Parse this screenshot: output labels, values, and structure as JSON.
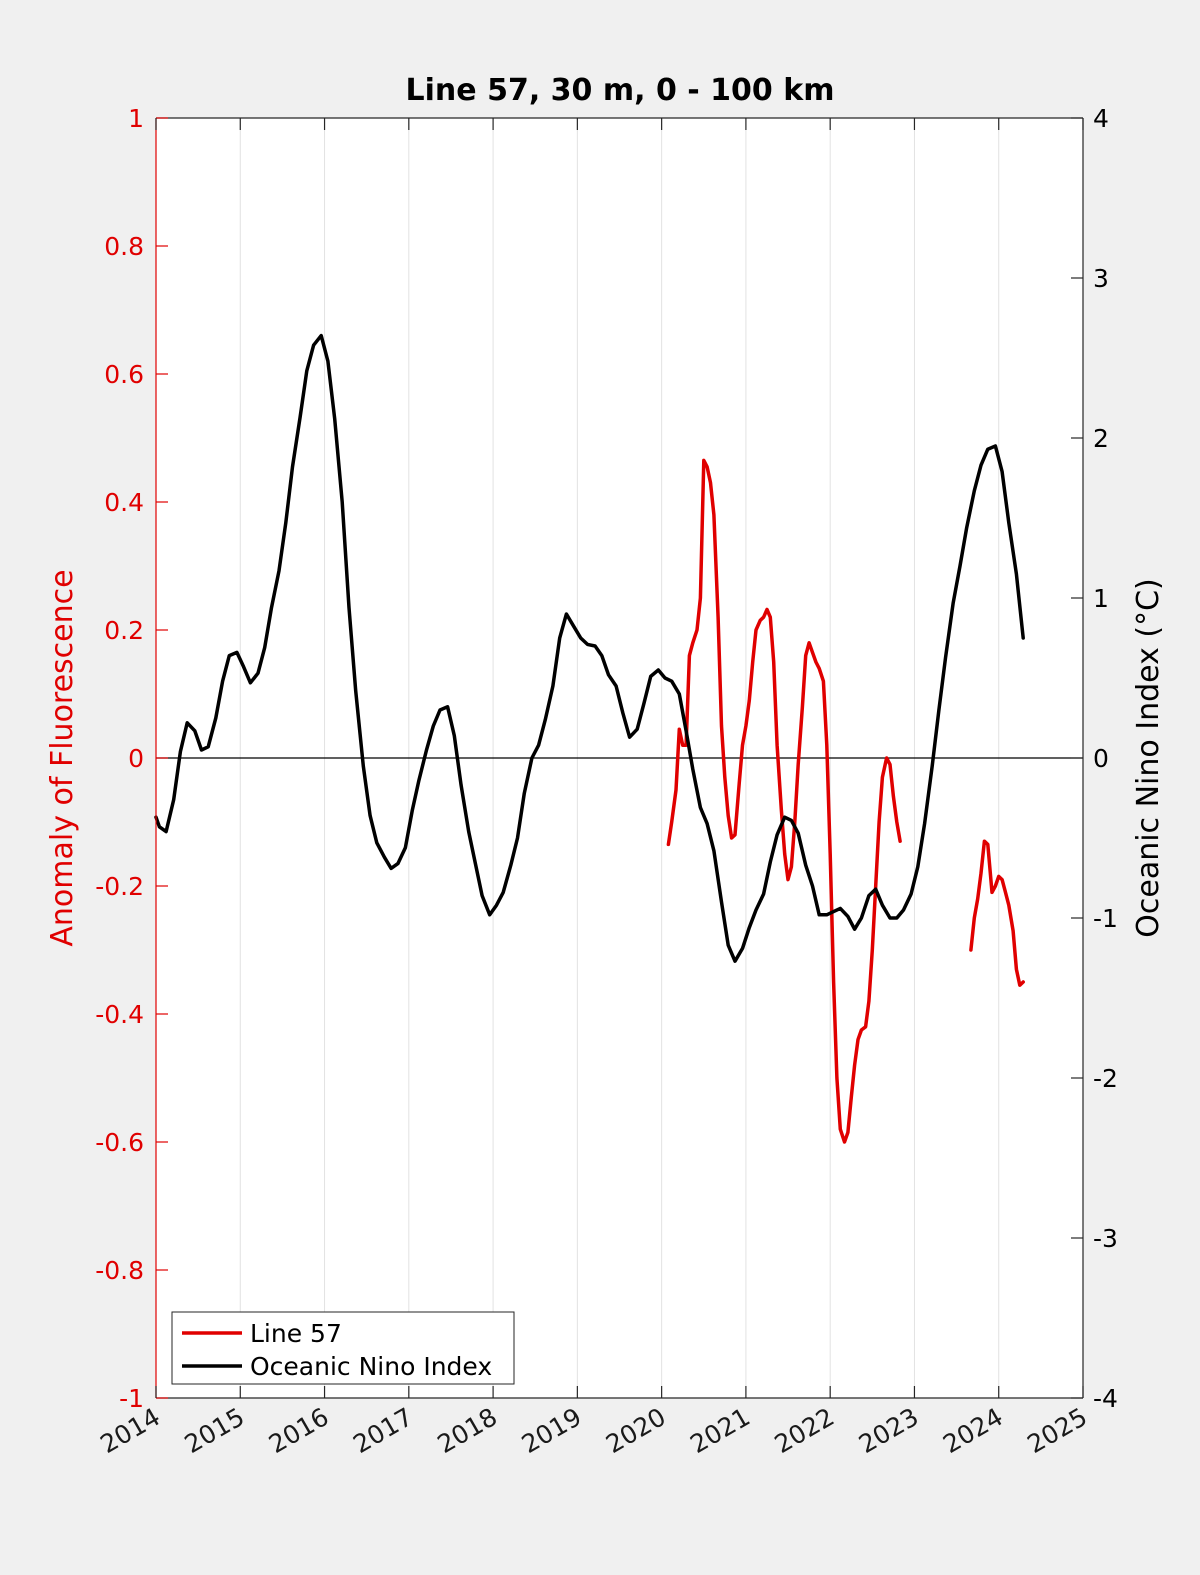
{
  "chart_data": {
    "type": "line",
    "title": "Line 57, 30 m, 0 - 100 km",
    "xlabel": "",
    "ylabel_left": "Anomaly of Fluorescence",
    "ylabel_right": "Oceanic Nino Index (°C)",
    "xlim": [
      2014,
      2025
    ],
    "ylim_left": [
      -1,
      1
    ],
    "ylim_right": [
      -4,
      4
    ],
    "x_ticks": [
      "2014",
      "2015",
      "2016",
      "2017",
      "2018",
      "2019",
      "2020",
      "2021",
      "2022",
      "2023",
      "2024",
      "2025"
    ],
    "y_ticks_left": [
      "-1",
      "-0.8",
      "-0.6",
      "-0.4",
      "-0.2",
      "0",
      "0.2",
      "0.4",
      "0.6",
      "0.8",
      "1"
    ],
    "y_ticks_right": [
      "-4",
      "-3",
      "-2",
      "-1",
      "0",
      "1",
      "2",
      "3",
      "4"
    ],
    "vertical_grid": true,
    "legend_position": "bottom-left",
    "colors": {
      "line57": "#e00000",
      "oni": "#000000",
      "left_axis": "#e00000"
    },
    "series": [
      {
        "name": "Line 57",
        "axis": "left",
        "segments": [
          [
            [
              2020.08,
              -0.135
            ],
            [
              2020.12,
              -0.1
            ],
            [
              2020.17,
              -0.05
            ],
            [
              2020.21,
              0.045
            ],
            [
              2020.25,
              0.02
            ],
            [
              2020.29,
              0.02
            ],
            [
              2020.33,
              0.16
            ],
            [
              2020.37,
              0.18
            ],
            [
              2020.42,
              0.2
            ],
            [
              2020.46,
              0.25
            ],
            [
              2020.5,
              0.465
            ],
            [
              2020.54,
              0.455
            ],
            [
              2020.58,
              0.43
            ],
            [
              2020.62,
              0.38
            ],
            [
              2020.67,
              0.22
            ],
            [
              2020.71,
              0.05
            ],
            [
              2020.75,
              -0.03
            ],
            [
              2020.79,
              -0.09
            ],
            [
              2020.83,
              -0.125
            ],
            [
              2020.87,
              -0.12
            ],
            [
              2020.92,
              -0.04
            ],
            [
              2020.96,
              0.02
            ],
            [
              2021.0,
              0.05
            ],
            [
              2021.04,
              0.09
            ],
            [
              2021.08,
              0.15
            ],
            [
              2021.12,
              0.2
            ],
            [
              2021.17,
              0.215
            ],
            [
              2021.21,
              0.22
            ],
            [
              2021.25,
              0.232
            ],
            [
              2021.29,
              0.22
            ],
            [
              2021.33,
              0.15
            ],
            [
              2021.37,
              0.02
            ],
            [
              2021.42,
              -0.08
            ],
            [
              2021.46,
              -0.15
            ],
            [
              2021.5,
              -0.19
            ],
            [
              2021.54,
              -0.17
            ],
            [
              2021.58,
              -0.1
            ],
            [
              2021.62,
              -0.01
            ],
            [
              2021.67,
              0.08
            ],
            [
              2021.71,
              0.16
            ],
            [
              2021.75,
              0.18
            ],
            [
              2021.79,
              0.165
            ],
            [
              2021.83,
              0.15
            ],
            [
              2021.87,
              0.14
            ],
            [
              2021.92,
              0.12
            ],
            [
              2021.96,
              0.02
            ],
            [
              2022.0,
              -0.15
            ],
            [
              2022.04,
              -0.35
            ],
            [
              2022.08,
              -0.5
            ],
            [
              2022.12,
              -0.58
            ],
            [
              2022.17,
              -0.6
            ],
            [
              2022.21,
              -0.585
            ],
            [
              2022.25,
              -0.53
            ],
            [
              2022.29,
              -0.48
            ],
            [
              2022.33,
              -0.44
            ],
            [
              2022.37,
              -0.425
            ],
            [
              2022.42,
              -0.42
            ],
            [
              2022.46,
              -0.38
            ],
            [
              2022.5,
              -0.3
            ],
            [
              2022.54,
              -0.2
            ],
            [
              2022.58,
              -0.1
            ],
            [
              2022.62,
              -0.03
            ],
            [
              2022.67,
              0.0
            ],
            [
              2022.71,
              -0.01
            ],
            [
              2022.75,
              -0.06
            ],
            [
              2022.79,
              -0.1
            ],
            [
              2022.83,
              -0.13
            ]
          ],
          [
            [
              2023.67,
              -0.3
            ],
            [
              2023.71,
              -0.25
            ],
            [
              2023.75,
              -0.22
            ],
            [
              2023.79,
              -0.18
            ],
            [
              2023.83,
              -0.13
            ],
            [
              2023.87,
              -0.135
            ],
            [
              2023.92,
              -0.21
            ],
            [
              2023.96,
              -0.2
            ],
            [
              2024.0,
              -0.185
            ],
            [
              2024.04,
              -0.19
            ],
            [
              2024.08,
              -0.21
            ],
            [
              2024.12,
              -0.23
            ],
            [
              2024.17,
              -0.27
            ],
            [
              2024.21,
              -0.33
            ],
            [
              2024.25,
              -0.355
            ],
            [
              2024.29,
              -0.35
            ]
          ]
        ]
      },
      {
        "name": "Oceanic Nino Index",
        "axis": "right",
        "segments": [
          [
            [
              2014.0,
              -0.37
            ],
            [
              2014.04,
              -0.43
            ],
            [
              2014.12,
              -0.46
            ],
            [
              2014.21,
              -0.26
            ],
            [
              2014.29,
              0.04
            ],
            [
              2014.37,
              0.22
            ],
            [
              2014.46,
              0.17
            ],
            [
              2014.54,
              0.05
            ],
            [
              2014.62,
              0.07
            ],
            [
              2014.71,
              0.25
            ],
            [
              2014.79,
              0.48
            ],
            [
              2014.87,
              0.64
            ],
            [
              2014.96,
              0.66
            ],
            [
              2015.04,
              0.57
            ],
            [
              2015.12,
              0.47
            ],
            [
              2015.21,
              0.53
            ],
            [
              2015.29,
              0.69
            ],
            [
              2015.37,
              0.94
            ],
            [
              2015.46,
              1.17
            ],
            [
              2015.54,
              1.47
            ],
            [
              2015.62,
              1.82
            ],
            [
              2015.71,
              2.13
            ],
            [
              2015.79,
              2.42
            ],
            [
              2015.87,
              2.58
            ],
            [
              2015.96,
              2.64
            ],
            [
              2016.04,
              2.48
            ],
            [
              2016.12,
              2.12
            ],
            [
              2016.21,
              1.6
            ],
            [
              2016.29,
              0.94
            ],
            [
              2016.37,
              0.42
            ],
            [
              2016.46,
              -0.05
            ],
            [
              2016.54,
              -0.36
            ],
            [
              2016.62,
              -0.53
            ],
            [
              2016.71,
              -0.62
            ],
            [
              2016.79,
              -0.69
            ],
            [
              2016.87,
              -0.66
            ],
            [
              2016.96,
              -0.56
            ],
            [
              2017.04,
              -0.33
            ],
            [
              2017.12,
              -0.14
            ],
            [
              2017.21,
              0.05
            ],
            [
              2017.29,
              0.2
            ],
            [
              2017.37,
              0.3
            ],
            [
              2017.46,
              0.32
            ],
            [
              2017.54,
              0.14
            ],
            [
              2017.62,
              -0.17
            ],
            [
              2017.71,
              -0.46
            ],
            [
              2017.79,
              -0.66
            ],
            [
              2017.87,
              -0.86
            ],
            [
              2017.96,
              -0.98
            ],
            [
              2018.04,
              -0.92
            ],
            [
              2018.12,
              -0.84
            ],
            [
              2018.21,
              -0.67
            ],
            [
              2018.29,
              -0.5
            ],
            [
              2018.37,
              -0.22
            ],
            [
              2018.46,
              0.0
            ],
            [
              2018.54,
              0.08
            ],
            [
              2018.62,
              0.24
            ],
            [
              2018.71,
              0.45
            ],
            [
              2018.79,
              0.75
            ],
            [
              2018.87,
              0.9
            ],
            [
              2018.96,
              0.82
            ],
            [
              2019.04,
              0.75
            ],
            [
              2019.12,
              0.71
            ],
            [
              2019.21,
              0.7
            ],
            [
              2019.29,
              0.64
            ],
            [
              2019.37,
              0.52
            ],
            [
              2019.46,
              0.45
            ],
            [
              2019.54,
              0.28
            ],
            [
              2019.62,
              0.13
            ],
            [
              2019.71,
              0.18
            ],
            [
              2019.79,
              0.34
            ],
            [
              2019.87,
              0.51
            ],
            [
              2019.96,
              0.55
            ],
            [
              2020.04,
              0.5
            ],
            [
              2020.12,
              0.48
            ],
            [
              2020.21,
              0.4
            ],
            [
              2020.29,
              0.17
            ],
            [
              2020.37,
              -0.07
            ],
            [
              2020.46,
              -0.31
            ],
            [
              2020.54,
              -0.41
            ],
            [
              2020.62,
              -0.58
            ],
            [
              2020.71,
              -0.9
            ],
            [
              2020.79,
              -1.17
            ],
            [
              2020.87,
              -1.27
            ],
            [
              2020.96,
              -1.19
            ],
            [
              2021.04,
              -1.06
            ],
            [
              2021.12,
              -0.95
            ],
            [
              2021.21,
              -0.85
            ],
            [
              2021.29,
              -0.65
            ],
            [
              2021.37,
              -0.48
            ],
            [
              2021.46,
              -0.37
            ],
            [
              2021.54,
              -0.39
            ],
            [
              2021.62,
              -0.47
            ],
            [
              2021.71,
              -0.67
            ],
            [
              2021.79,
              -0.8
            ],
            [
              2021.87,
              -0.98
            ],
            [
              2021.96,
              -0.98
            ],
            [
              2022.04,
              -0.96
            ],
            [
              2022.12,
              -0.94
            ],
            [
              2022.21,
              -0.99
            ],
            [
              2022.29,
              -1.07
            ],
            [
              2022.37,
              -1.0
            ],
            [
              2022.46,
              -0.86
            ],
            [
              2022.54,
              -0.82
            ],
            [
              2022.62,
              -0.92
            ],
            [
              2022.71,
              -1.0
            ],
            [
              2022.79,
              -1.0
            ],
            [
              2022.87,
              -0.95
            ],
            [
              2022.96,
              -0.85
            ],
            [
              2023.04,
              -0.68
            ],
            [
              2023.12,
              -0.41
            ],
            [
              2023.21,
              -0.05
            ],
            [
              2023.29,
              0.3
            ],
            [
              2023.37,
              0.63
            ],
            [
              2023.46,
              0.97
            ],
            [
              2023.54,
              1.2
            ],
            [
              2023.62,
              1.44
            ],
            [
              2023.71,
              1.67
            ],
            [
              2023.79,
              1.83
            ],
            [
              2023.87,
              1.93
            ],
            [
              2023.96,
              1.95
            ],
            [
              2024.04,
              1.79
            ],
            [
              2024.12,
              1.47
            ],
            [
              2024.21,
              1.15
            ],
            [
              2024.29,
              0.75
            ]
          ]
        ]
      }
    ]
  }
}
